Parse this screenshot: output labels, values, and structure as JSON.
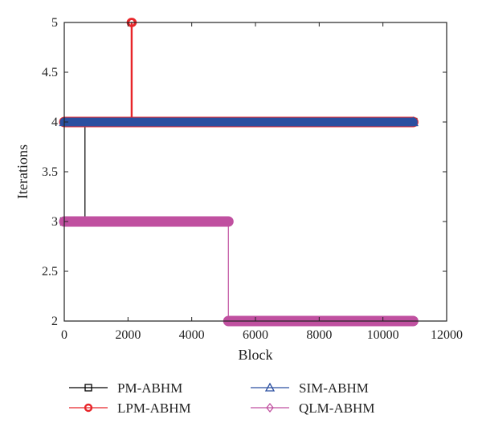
{
  "chart_data": {
    "type": "line",
    "title": "",
    "xlabel": "Block",
    "ylabel": "Iterations",
    "xlim": [
      0,
      12000
    ],
    "ylim": [
      2,
      5
    ],
    "xticks": [
      0,
      2000,
      4000,
      6000,
      8000,
      10000,
      12000
    ],
    "yticks": [
      2,
      2.5,
      3,
      3.5,
      4,
      4.5,
      5
    ],
    "xtick_labels": [
      "0",
      "2000",
      "4000",
      "6000",
      "8000",
      "10000",
      "12000"
    ],
    "ytick_labels": [
      "2",
      "2.5",
      "3",
      "3.5",
      "4",
      "4.5",
      "5"
    ],
    "grid": false,
    "legend_position": "bottom",
    "series": [
      {
        "name": "PM-ABHM",
        "color": "#000000",
        "marker": "square",
        "x": [
          0,
          650,
          650,
          10950
        ],
        "y": [
          3,
          3,
          4,
          4
        ]
      },
      {
        "name": "LPM-ABHM",
        "color": "#e8262a",
        "marker": "circle",
        "x": [
          0,
          2100,
          2100,
          2130,
          2130,
          10950
        ],
        "y": [
          4,
          4,
          5,
          5,
          4,
          4
        ]
      },
      {
        "name": "SIM-ABHM",
        "color": "#2b4fa0",
        "marker": "triangle",
        "x": [
          0,
          10950
        ],
        "y": [
          4,
          4
        ]
      },
      {
        "name": "QLM-ABHM",
        "color": "#c050a0",
        "marker": "diamond",
        "x": [
          0,
          5150,
          5150,
          10950
        ],
        "y": [
          3,
          3,
          2,
          2
        ]
      }
    ]
  }
}
